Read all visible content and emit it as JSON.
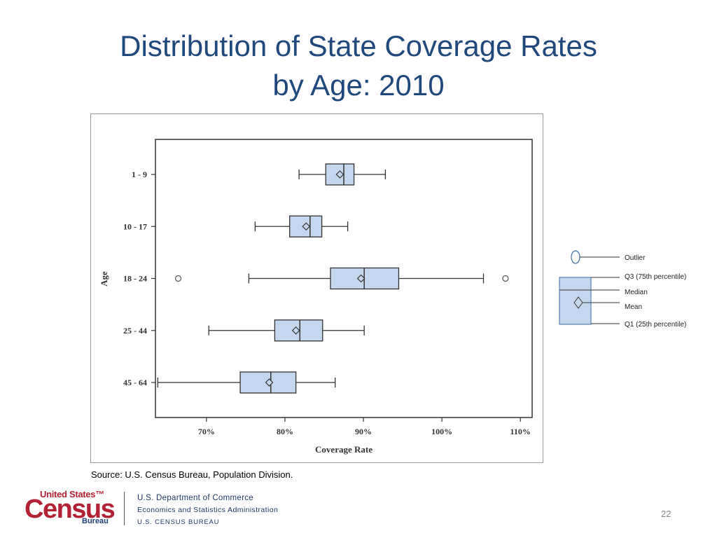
{
  "slide": {
    "title_line1": "Distribution of State Coverage Rates",
    "title_line2": "by Age:  2010",
    "source": "Source: U.S. Census Bureau, Population Division.",
    "page_number": "22"
  },
  "footer": {
    "logo_top": "United States™",
    "logo_main": "Census",
    "logo_bottom": "Bureau",
    "dept_line1": "U.S. Department of Commerce",
    "dept_line2": "Economics and Statistics Administration",
    "dept_line3": "U.S. CENSUS BUREAU"
  },
  "legend": {
    "outlier": "Outlier",
    "q3": "Q3 (75th percentile)",
    "median": "Median",
    "mean": "Mean",
    "q1": "Q1 (25th percentile)"
  },
  "colors": {
    "box_fill": "#c5d7ee",
    "box_stroke": "#333333",
    "title": "#1f497d",
    "brand_red": "#b22234"
  },
  "chart_data": {
    "type": "boxplot",
    "orientation": "horizontal",
    "title": "",
    "xlabel": "Coverage Rate",
    "ylabel": "Age",
    "xlim": [
      63.5,
      111.5
    ],
    "x_ticks": [
      70,
      80,
      90,
      100,
      110
    ],
    "x_tick_labels": [
      "70%",
      "80%",
      "90%",
      "100%",
      "110%"
    ],
    "categories": [
      "1 -  9",
      "10 - 17",
      "18 - 24",
      "25 - 44",
      "45 - 64"
    ],
    "boxes": [
      {
        "min": 81.8,
        "q1": 85.2,
        "median": 87.5,
        "q3": 88.8,
        "max": 92.8,
        "mean": 87.0,
        "outliers": []
      },
      {
        "min": 76.2,
        "q1": 80.6,
        "median": 83.2,
        "q3": 84.7,
        "max": 88.0,
        "mean": 82.7,
        "outliers": []
      },
      {
        "min": 75.4,
        "q1": 85.8,
        "median": 90.1,
        "q3": 94.5,
        "max": 105.3,
        "mean": 89.7,
        "outliers": [
          66.4,
          108.1
        ]
      },
      {
        "min": 70.3,
        "q1": 78.7,
        "median": 81.9,
        "q3": 84.8,
        "max": 90.1,
        "mean": 81.4,
        "outliers": []
      },
      {
        "min": 63.8,
        "q1": 74.3,
        "median": 78.2,
        "q3": 81.4,
        "max": 86.4,
        "mean": 78.0,
        "outliers": []
      }
    ],
    "grid": false,
    "legend_position": "right"
  }
}
